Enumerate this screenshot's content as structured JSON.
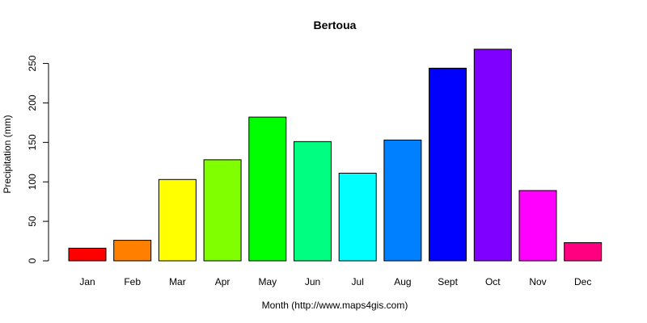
{
  "chart_data": {
    "type": "bar",
    "title": "Bertoua",
    "xlabel": "Month (http://www.maps4gis.com)",
    "ylabel": "Precipitation (mm)",
    "categories": [
      "Jan",
      "Feb",
      "Mar",
      "Apr",
      "May",
      "Jun",
      "Jul",
      "Aug",
      "Sept",
      "Oct",
      "Nov",
      "Dec"
    ],
    "values": [
      16,
      26,
      103,
      128,
      182,
      151,
      111,
      153,
      244,
      268,
      89,
      23
    ],
    "colors": [
      "#FF0000",
      "#FF8000",
      "#FFFF00",
      "#80FF00",
      "#00FF00",
      "#00FF80",
      "#00FFFF",
      "#0080FF",
      "#0000FF",
      "#8000FF",
      "#FF00FF",
      "#FF0080"
    ],
    "yticks": [
      0,
      50,
      100,
      150,
      200,
      250
    ],
    "ylim": [
      0,
      270
    ],
    "grid": false,
    "legend": "none"
  }
}
